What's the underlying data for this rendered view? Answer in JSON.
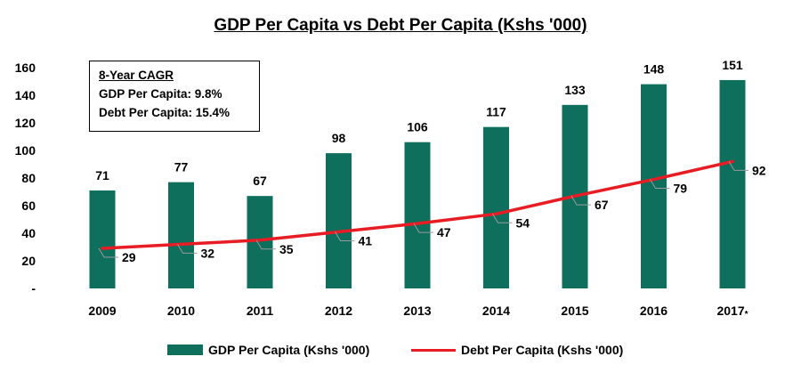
{
  "chart_data": {
    "type": "bar",
    "title": "GDP Per Capita vs Debt Per Capita (Kshs '000)",
    "categories": [
      "2009",
      "2010",
      "2011",
      "2012",
      "2013",
      "2014",
      "2015",
      "2016",
      "2017*"
    ],
    "series": [
      {
        "name": "GDP Per Capita (Kshs '000)",
        "type": "bar",
        "color": "#0E6F5C",
        "values": [
          71,
          77,
          67,
          98,
          106,
          117,
          133,
          148,
          151
        ]
      },
      {
        "name": "Debt Per Capita (Kshs '000)",
        "type": "line",
        "color": "#E81C24",
        "values": [
          29,
          32,
          35,
          41,
          47,
          54,
          67,
          79,
          92
        ]
      }
    ],
    "ylim": [
      0,
      160
    ],
    "yticks": [
      "-",
      "20",
      "40",
      "60",
      "80",
      "100",
      "120",
      "140",
      "160"
    ],
    "grid": false,
    "legend": "bottom",
    "annotation": {
      "heading": "8-Year CAGR",
      "lines": [
        "GDP Per Capita: 9.8%",
        "Debt Per Capita: 15.4%"
      ]
    }
  }
}
